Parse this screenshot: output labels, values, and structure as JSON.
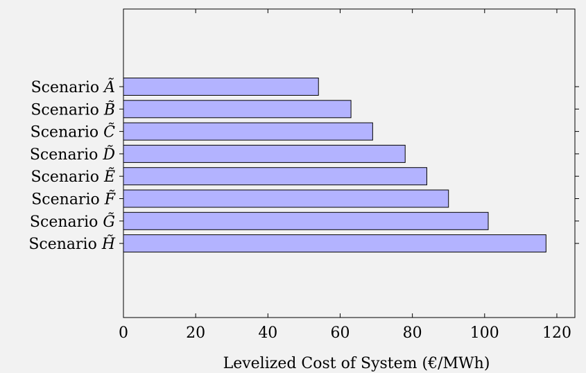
{
  "chart_data": {
    "type": "bar",
    "orientation": "horizontal",
    "categories": [
      "Scenario Ã",
      "Scenario B̃",
      "Scenario C̃",
      "Scenario D̃",
      "Scenario Ẽ",
      "Scenario F̃",
      "Scenario G̃",
      "Scenario H̃"
    ],
    "category_prefix": "Scenario ",
    "category_symbols": [
      "Ã",
      "B̃",
      "C̃",
      "D̃",
      "Ẽ",
      "F̃",
      "G̃",
      "H̃"
    ],
    "values": [
      54,
      63,
      69,
      78,
      84,
      90,
      101,
      117
    ],
    "xlabel": "Levelized Cost of System (€/MWh)",
    "ylabel": "",
    "title": "",
    "xlim": [
      0,
      125
    ],
    "xticks": [
      0,
      20,
      40,
      60,
      80,
      100,
      120
    ],
    "xtick_labels": [
      "0",
      "20",
      "40",
      "60",
      "80",
      "100",
      "120"
    ],
    "grid": false,
    "legend": "none",
    "colors": {
      "bar_fill": "#b3b3ff",
      "bar_stroke": "#000000",
      "background": "#f2f2f2",
      "axis": "#000000"
    }
  }
}
